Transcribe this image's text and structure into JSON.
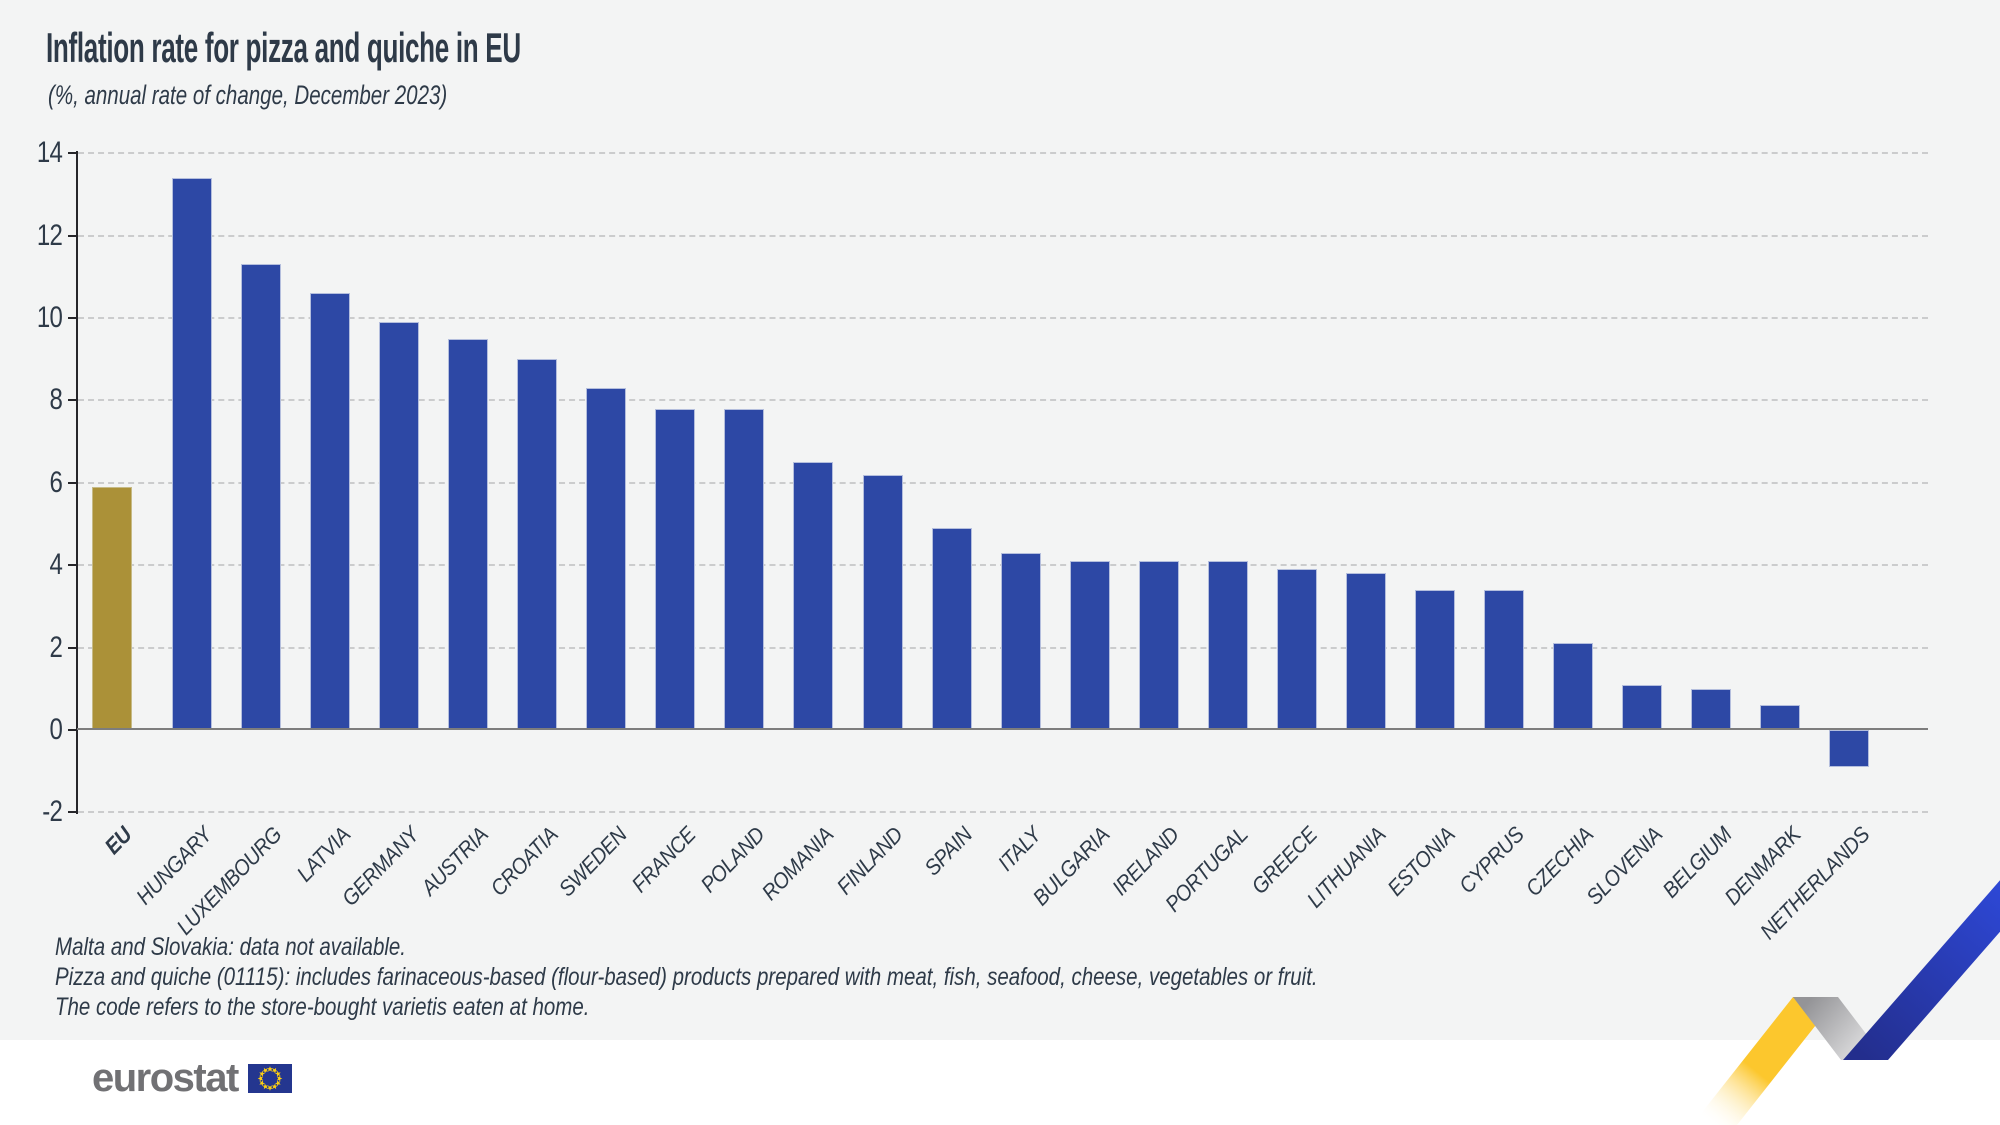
{
  "title": "Inflation rate for pizza and quiche in EU",
  "subtitle": "(%, annual rate of change, December 2023)",
  "chart_data": {
    "type": "bar",
    "categories": [
      "EU",
      "HUNGARY",
      "LUXEMBOURG",
      "LATVIA",
      "GERMANY",
      "AUSTRIA",
      "CROATIA",
      "SWEDEN",
      "FRANCE",
      "POLAND",
      "ROMANIA",
      "FINLAND",
      "SPAIN",
      "ITALY",
      "BULGARIA",
      "IRELAND",
      "PORTUGAL",
      "GREECE",
      "LITHUANIA",
      "ESTONIA",
      "CYPRUS",
      "CZECHIA",
      "SLOVENIA",
      "BELGIUM",
      "DENMARK",
      "NETHERLANDS"
    ],
    "values": [
      5.9,
      13.4,
      11.3,
      10.6,
      9.9,
      9.5,
      9.0,
      8.3,
      7.8,
      7.8,
      6.5,
      6.2,
      4.9,
      4.3,
      4.1,
      4.1,
      4.1,
      3.9,
      3.8,
      3.4,
      3.4,
      2.1,
      1.1,
      1.0,
      0.6,
      -0.9
    ],
    "title": "Inflation rate for pizza and quiche in EU",
    "subtitle": "(%, annual rate of change, December 2023)",
    "unit": "%",
    "xlabel": "",
    "ylabel": "",
    "ylim": [
      -2,
      14
    ],
    "yticks": [
      14,
      12,
      10,
      8,
      6,
      4,
      2,
      0,
      -2
    ],
    "grid": "horizontal-dashed",
    "legend": "none",
    "x_label_rotation_deg": 46,
    "highlight": {
      "category": "EU",
      "index": 0,
      "color": "#ab9138"
    },
    "bar_color": "#2d48a5"
  },
  "footnotes": [
    "Malta and Slovakia: data not available.",
    "Pizza and quiche (01115): includes farinaceous-based (flour-based) products prepared with meat, fish, seafood, cheese, vegetables or fruit.",
    "The code refers to the store-bought varietis eaten at home."
  ],
  "logo": {
    "text": "eurostat"
  },
  "colors": {
    "background": "#f3f4f4",
    "footer_background": "#ffffff",
    "title_text": "#2e3a48",
    "axis_text": "#2e3a48",
    "axis_line": "#26262a",
    "zero_line": "#7d7d7d",
    "gridline": "#cbcccd",
    "bar_blue": "#2d48a5",
    "bar_gold": "#ab9138",
    "bar_outline": "#b4bedd",
    "logo_text": "#717174",
    "flag_blue": "#24368f",
    "flag_stars": "#fccf12",
    "ribbon_yellow": "#fcc72d",
    "ribbon_gray_dark": "#949497",
    "ribbon_gray_light": "#ededee",
    "ribbon_blue_dark": "#232e8d",
    "ribbon_blue_bright": "#2e49d9"
  }
}
